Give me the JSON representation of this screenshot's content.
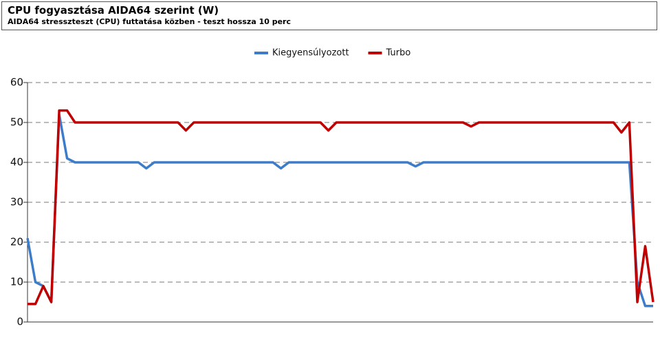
{
  "chart_data": {
    "type": "line",
    "title": "CPU fogyasztása AIDA64 szerint (W)",
    "subtitle": "AIDA64 stresszteszt (CPU) futtatása közben - teszt hossza 10 perc",
    "categories": [
      null,
      null,
      null,
      null,
      null,
      null,
      null,
      null,
      null,
      null,
      null,
      null,
      null,
      null,
      null,
      null,
      null,
      null,
      null,
      null,
      null,
      null,
      null,
      null,
      null,
      null,
      null,
      null,
      null,
      null,
      null,
      null,
      null,
      null,
      null,
      null,
      null,
      null,
      null,
      null,
      null,
      null,
      null,
      null,
      null,
      null,
      null,
      null,
      null,
      null,
      null,
      null,
      null,
      null,
      null,
      null,
      null,
      null,
      null,
      null,
      null,
      null,
      null,
      null,
      null,
      null,
      null,
      null,
      null,
      null,
      null,
      null,
      null,
      null,
      null,
      null,
      null,
      null,
      null,
      null
    ],
    "series": [
      {
        "name": "Kiegyensúlyozott",
        "color": "#3d7cc9",
        "values": [
          21,
          10,
          9,
          5,
          52,
          41,
          40,
          40,
          40,
          40,
          40,
          40,
          40,
          40,
          40,
          38.5,
          40,
          40,
          40,
          40,
          40,
          40,
          40,
          40,
          40,
          40,
          40,
          40,
          40,
          40,
          40,
          40,
          38.5,
          40,
          40,
          40,
          40,
          40,
          40,
          40,
          40,
          40,
          40,
          40,
          40,
          40,
          40,
          40,
          40,
          39,
          40,
          40,
          40,
          40,
          40,
          40,
          40,
          40,
          40,
          40,
          40,
          40,
          40,
          40,
          40,
          40,
          40,
          40,
          40,
          40,
          40,
          40,
          40,
          40,
          40,
          40,
          40,
          10,
          4,
          4
        ]
      },
      {
        "name": "Turbo",
        "color": "#c00000",
        "values": [
          4.5,
          4.5,
          9,
          5,
          53,
          53,
          50,
          50,
          50,
          50,
          50,
          50,
          50,
          50,
          50,
          50,
          50,
          50,
          50,
          50,
          48,
          50,
          50,
          50,
          50,
          50,
          50,
          50,
          50,
          50,
          50,
          50,
          50,
          50,
          50,
          50,
          50,
          50,
          48,
          50,
          50,
          50,
          50,
          50,
          50,
          50,
          50,
          50,
          50,
          50,
          50,
          50,
          50,
          50,
          50,
          50,
          49,
          50,
          50,
          50,
          50,
          50,
          50,
          50,
          50,
          50,
          50,
          50,
          50,
          50,
          50,
          50,
          50,
          50,
          50,
          47.5,
          50,
          5,
          19,
          5
        ]
      }
    ],
    "ylim": [
      0,
      60
    ],
    "yticks": [
      0,
      10,
      20,
      30,
      40,
      50,
      60
    ],
    "grid": true
  }
}
